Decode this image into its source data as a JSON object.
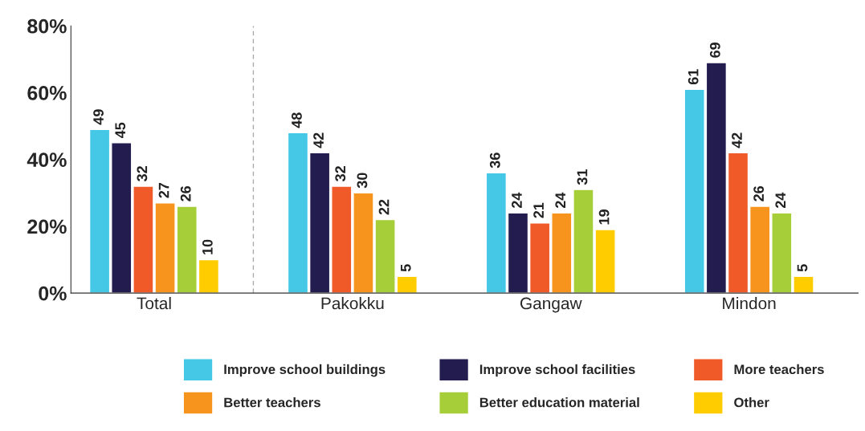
{
  "chart_data": {
    "type": "bar",
    "categories": [
      "Total",
      "Pakokku",
      "Gangaw",
      "Mindon"
    ],
    "series": [
      {
        "name": "Improve school buildings",
        "color": "#45c8e6",
        "values": [
          49,
          48,
          36,
          61
        ]
      },
      {
        "name": "Improve school facilities",
        "color": "#231c4f",
        "values": [
          45,
          42,
          24,
          69
        ]
      },
      {
        "name": "More teachers",
        "color": "#f05a28",
        "values": [
          32,
          32,
          21,
          42
        ]
      },
      {
        "name": "Better teachers",
        "color": "#f7941d",
        "values": [
          27,
          30,
          24,
          26
        ]
      },
      {
        "name": "Better education material",
        "color": "#a6ce39",
        "values": [
          26,
          22,
          31,
          24
        ]
      },
      {
        "name": "Other",
        "color": "#ffcc00",
        "values": [
          10,
          5,
          19,
          5
        ]
      }
    ],
    "ylim": [
      0,
      80
    ],
    "yticks": [
      {
        "value": 0,
        "label": "0%"
      },
      {
        "value": 20,
        "label": "20%"
      },
      {
        "value": 40,
        "label": "40%"
      },
      {
        "value": 60,
        "label": "60%"
      },
      {
        "value": 80,
        "label": "80%"
      }
    ],
    "data_labels": true,
    "grid": false,
    "legend": "bottom"
  }
}
